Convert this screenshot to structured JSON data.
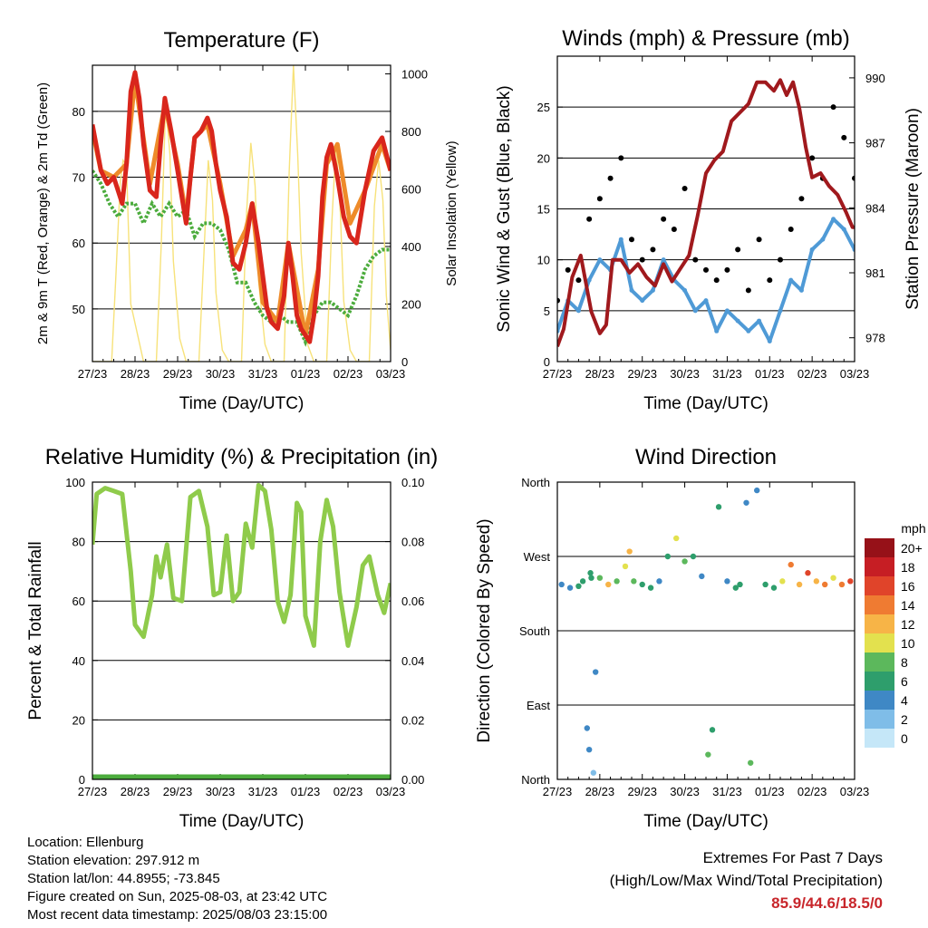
{
  "colors": {
    "temp_2m": "#d9261c",
    "temp_9m": "#ee8b2a",
    "dewpoint": "#4cac3d",
    "solar": "#f7e27a",
    "sonic_wind": "#4f9ad6",
    "gust": "#000000",
    "pressure": "#a0191d",
    "rh": "#8fcb4b",
    "precip": "#4cac3d",
    "extremes": "#c8262b"
  },
  "time_ticks": [
    "27/23",
    "28/23",
    "29/23",
    "30/23",
    "31/23",
    "01/23",
    "02/23",
    "03/23"
  ],
  "footer": {
    "location": "Location: Ellenburg",
    "elevation": "Station elevation: 297.912 m",
    "latlon": "Station lat/lon: 44.8955; -73.845",
    "created": "Figure created on Sun, 2025-08-03, at 23:42 UTC",
    "recent": "Most recent data timestamp: 2025/08/03 23:15:00",
    "extremes_title": "Extremes For Past 7 Days",
    "extremes_sub": "(High/Low/Max Wind/Total Precipitation)",
    "extremes_value": "85.9/44.6/18.5/0"
  },
  "chart_data": [
    {
      "type": "line",
      "title": "Temperature (F)",
      "xlabel": "Time (Day/UTC)",
      "ylabel": "2m & 9m T (Red, Orange) & 2m Td (Green)",
      "y2label": "Solar Insolation (Yellow)",
      "x_ticks": [
        "27/23",
        "28/23",
        "29/23",
        "30/23",
        "31/23",
        "01/23",
        "02/23",
        "03/23"
      ],
      "ylim": [
        42,
        87
      ],
      "yticks": [
        50,
        60,
        70,
        80
      ],
      "y2lim": [
        0,
        1030
      ],
      "y2ticks": [
        0,
        200,
        400,
        600,
        800,
        1000
      ],
      "grid": true,
      "series": [
        {
          "name": "2m T",
          "axis": "left",
          "x": [
            0,
            0.2,
            0.35,
            0.5,
            0.6,
            0.7,
            0.8,
            0.9,
            1.0,
            1.1,
            1.2,
            1.35,
            1.5,
            1.6,
            1.7,
            1.85,
            2.0,
            2.1,
            2.2,
            2.3,
            2.4,
            2.55,
            2.7,
            2.8,
            2.9,
            3.0,
            3.15,
            3.3,
            3.45,
            3.6,
            3.75,
            3.9,
            4.0,
            4.1,
            4.2,
            4.35,
            4.5,
            4.6,
            4.7,
            4.8,
            4.9,
            5.0,
            5.1,
            5.2,
            5.3,
            5.4,
            5.5,
            5.6,
            5.75,
            5.9,
            6.05,
            6.2,
            6.4,
            6.6,
            6.8,
            7.0
          ],
          "y": [
            78,
            71,
            69,
            70,
            68,
            66,
            72,
            83,
            85.9,
            82,
            75,
            68,
            67,
            75,
            82,
            77,
            71,
            67,
            63,
            70,
            76,
            77,
            79,
            77,
            72,
            68,
            64,
            57,
            56,
            60,
            66,
            60,
            55,
            50,
            48,
            47,
            52,
            60,
            55,
            49,
            47,
            46,
            45,
            49,
            55,
            67,
            73,
            75,
            70,
            64,
            61,
            60,
            68,
            74,
            76,
            71
          ]
        },
        {
          "name": "9m T",
          "axis": "left",
          "x": [
            0,
            0.2,
            0.5,
            0.8,
            1.0,
            1.35,
            1.7,
            2.0,
            2.2,
            2.4,
            2.7,
            3.0,
            3.3,
            3.6,
            3.75,
            4.0,
            4.35,
            4.6,
            5.0,
            5.3,
            5.5,
            5.75,
            6.05,
            6.4,
            6.8,
            7.0
          ],
          "y": [
            77,
            71,
            70,
            72,
            85,
            69,
            81,
            72,
            64,
            76,
            78,
            69,
            58,
            62,
            66,
            51,
            48,
            60,
            46,
            56,
            72,
            75,
            63,
            68,
            75,
            71
          ]
        },
        {
          "name": "2m Td",
          "axis": "left",
          "x": [
            0,
            0.2,
            0.4,
            0.6,
            0.8,
            1.0,
            1.2,
            1.4,
            1.6,
            1.8,
            2.0,
            2.2,
            2.4,
            2.6,
            2.8,
            3.0,
            3.2,
            3.4,
            3.6,
            3.8,
            4.0,
            4.2,
            4.4,
            4.6,
            4.8,
            5.0,
            5.2,
            5.4,
            5.6,
            5.8,
            6.0,
            6.2,
            6.4,
            6.6,
            6.8,
            7.0
          ],
          "y": [
            71,
            69,
            66,
            64,
            66,
            66,
            63,
            66,
            64,
            66,
            64,
            65,
            61,
            63,
            63,
            62,
            59,
            54,
            54,
            51,
            49,
            48,
            49,
            48,
            48,
            45,
            49,
            51,
            51,
            50,
            49,
            52,
            56,
            58,
            59,
            59
          ]
        },
        {
          "name": "Solar Insolation",
          "axis": "right",
          "x": [
            0,
            0.45,
            0.55,
            0.65,
            0.72,
            0.8,
            0.9,
            1.2,
            1.5,
            1.62,
            1.72,
            1.82,
            1.9,
            2.05,
            2.2,
            2.5,
            2.62,
            2.72,
            2.82,
            2.9,
            3.05,
            3.2,
            3.5,
            3.62,
            3.72,
            3.82,
            3.9,
            4.05,
            4.2,
            4.5,
            4.62,
            4.72,
            4.82,
            4.9,
            5.05,
            5.2,
            5.5,
            5.62,
            5.72,
            5.82,
            5.9,
            6.05,
            6.2,
            6.5,
            6.62,
            6.72,
            6.82,
            6.9,
            7.0
          ],
          "y": [
            0,
            0,
            300,
            620,
            700,
            680,
            200,
            0,
            0,
            420,
            900,
            720,
            350,
            80,
            0,
            0,
            380,
            700,
            560,
            240,
            40,
            0,
            0,
            520,
            760,
            610,
            280,
            60,
            0,
            0,
            660,
            1030,
            720,
            380,
            60,
            0,
            0,
            480,
            760,
            520,
            210,
            40,
            0,
            0,
            540,
            700,
            560,
            230,
            40
          ]
        }
      ]
    },
    {
      "type": "scatter",
      "title": "Winds (mph) & Pressure (mb)",
      "xlabel": "Time (Day/UTC)",
      "ylabel": "Sonic Wind & Gust (Blue, Black)",
      "y2label": "Station Pressure (Maroon)",
      "x_ticks": [
        "27/23",
        "28/23",
        "29/23",
        "30/23",
        "31/23",
        "01/23",
        "02/23",
        "03/23"
      ],
      "ylim": [
        0,
        30
      ],
      "yticks": [
        0,
        5,
        10,
        15,
        20,
        25
      ],
      "y2lim": [
        976.9,
        991
      ],
      "y2ticks": [
        978,
        981,
        984,
        987,
        990
      ],
      "grid": true,
      "series": [
        {
          "name": "Sonic Wind",
          "axis": "left",
          "x": [
            0,
            0.25,
            0.5,
            0.75,
            1.0,
            1.25,
            1.5,
            1.75,
            2.0,
            2.25,
            2.5,
            2.75,
            3.0,
            3.25,
            3.5,
            3.75,
            4.0,
            4.25,
            4.5,
            4.75,
            5.0,
            5.25,
            5.5,
            5.75,
            6.0,
            6.25,
            6.5,
            6.75,
            7.0
          ],
          "y": [
            3,
            6,
            5,
            8,
            10,
            9,
            12,
            7,
            6,
            7,
            10,
            8,
            7,
            5,
            6,
            3,
            5,
            4,
            3,
            4,
            2,
            5,
            8,
            7,
            11,
            12,
            14,
            13,
            11
          ]
        },
        {
          "name": "Gust",
          "axis": "left",
          "x": [
            0,
            0.25,
            0.5,
            0.75,
            1.0,
            1.25,
            1.5,
            1.75,
            2.0,
            2.25,
            2.5,
            2.75,
            3.0,
            3.25,
            3.5,
            3.75,
            4.0,
            4.25,
            4.5,
            4.75,
            5.0,
            5.25,
            5.5,
            5.75,
            6.0,
            6.25,
            6.5,
            6.75,
            7.0
          ],
          "y": [
            6,
            9,
            8,
            14,
            16,
            18,
            20,
            12,
            10,
            11,
            14,
            13,
            17,
            10,
            9,
            8,
            9,
            11,
            7,
            12,
            8,
            10,
            13,
            16,
            20,
            18,
            25,
            22,
            18
          ]
        },
        {
          "name": "Station Pressure",
          "axis": "right",
          "x": [
            0,
            0.15,
            0.35,
            0.55,
            0.8,
            1.0,
            1.15,
            1.3,
            1.5,
            1.7,
            1.9,
            2.1,
            2.3,
            2.5,
            2.7,
            2.9,
            3.1,
            3.3,
            3.5,
            3.7,
            3.9,
            4.1,
            4.3,
            4.5,
            4.7,
            4.9,
            5.0,
            5.1,
            5.25,
            5.4,
            5.55,
            5.7,
            5.85,
            6.0,
            6.2,
            6.4,
            6.6,
            6.8,
            6.95,
            7.0
          ],
          "y": [
            977.6,
            978.4,
            980.8,
            981.8,
            979.2,
            978.2,
            978.6,
            981.6,
            981.6,
            981.0,
            981.4,
            980.8,
            980.4,
            981.4,
            980.6,
            981.2,
            981.8,
            983.6,
            985.6,
            986.2,
            986.6,
            988.0,
            988.4,
            988.8,
            989.8,
            989.8,
            989.6,
            989.4,
            989.9,
            989.2,
            989.8,
            988.6,
            986.8,
            985.4,
            985.6,
            985.0,
            984.6,
            983.8,
            983.1,
            983.1
          ]
        }
      ]
    },
    {
      "type": "line",
      "title": "Relative Humidity (%) & Precipitation (in)",
      "xlabel": "Time (Day/UTC)",
      "ylabel": "Percent & Total Rainfall",
      "x_ticks": [
        "27/23",
        "28/23",
        "29/23",
        "30/23",
        "31/23",
        "01/23",
        "02/23",
        "03/23"
      ],
      "ylim": [
        0,
        100
      ],
      "yticks": [
        0,
        20,
        40,
        60,
        80,
        100
      ],
      "y2lim": [
        0,
        0.1
      ],
      "y2ticks": [
        "0.00",
        "0.02",
        "0.04",
        "0.06",
        "0.08",
        "0.10"
      ],
      "grid": true,
      "series": [
        {
          "name": "RH",
          "axis": "left",
          "x": [
            0,
            0.1,
            0.3,
            0.5,
            0.7,
            0.9,
            1.0,
            1.2,
            1.4,
            1.5,
            1.6,
            1.75,
            1.9,
            2.1,
            2.3,
            2.5,
            2.7,
            2.85,
            3.0,
            3.15,
            3.3,
            3.45,
            3.6,
            3.75,
            3.9,
            4.05,
            4.2,
            4.35,
            4.5,
            4.65,
            4.8,
            4.9,
            5.0,
            5.2,
            5.35,
            5.5,
            5.65,
            5.8,
            6.0,
            6.2,
            6.35,
            6.5,
            6.7,
            6.85,
            7.0
          ],
          "y": [
            79,
            96,
            98,
            97,
            96,
            70,
            52,
            48,
            62,
            75,
            68,
            79,
            61,
            60,
            95,
            97,
            85,
            62,
            63,
            82,
            60,
            63,
            86,
            78,
            99,
            97,
            84,
            60,
            53,
            62,
            93,
            90,
            55,
            45,
            80,
            94,
            85,
            63,
            45,
            58,
            72,
            75,
            62,
            56,
            66
          ]
        },
        {
          "name": "Total Precipitation",
          "axis": "right",
          "x": [
            0,
            7.0
          ],
          "y": [
            0,
            0
          ]
        }
      ]
    },
    {
      "type": "scatter",
      "title": "Wind Direction",
      "xlabel": "Time (Day/UTC)",
      "ylabel": "Direction (Colored By Speed)",
      "x_ticks": [
        "27/23",
        "28/23",
        "29/23",
        "30/23",
        "31/23",
        "01/23",
        "02/23",
        "03/23"
      ],
      "y_ticks": [
        "North",
        "East",
        "South",
        "West",
        "North"
      ],
      "y_tick_values": [
        0,
        90,
        180,
        270,
        360
      ],
      "ylim": [
        0,
        360
      ],
      "grid": true,
      "legend": {
        "title": "mph",
        "labels": [
          "0",
          "2",
          "4",
          "6",
          "8",
          "10",
          "12",
          "14",
          "16",
          "18",
          "20+"
        ],
        "colors": [
          "#c5e7f8",
          "#7fbde8",
          "#3f88c5",
          "#2e9e6c",
          "#5cb85c",
          "#e3e14e",
          "#f7b447",
          "#ef7b32",
          "#e0442a",
          "#c61e24",
          "#961118"
        ],
        "placement": "right"
      },
      "series": [
        {
          "name": "direction",
          "x": [
            0.1,
            0.3,
            0.5,
            0.6,
            0.7,
            0.75,
            0.78,
            0.8,
            0.85,
            0.9,
            1.0,
            1.2,
            1.4,
            1.6,
            1.7,
            1.8,
            2.0,
            2.2,
            2.4,
            2.6,
            2.8,
            3.0,
            3.2,
            3.4,
            3.55,
            3.65,
            3.8,
            4.0,
            4.2,
            4.3,
            4.45,
            4.55,
            4.7,
            4.9,
            5.1,
            5.3,
            5.5,
            5.7,
            5.9,
            6.1,
            6.3,
            6.5,
            6.7,
            6.9
          ],
          "y": [
            236,
            232,
            234,
            240,
            62,
            36,
            250,
            244,
            8,
            130,
            244,
            236,
            240,
            258,
            276,
            240,
            236,
            232,
            240,
            270,
            292,
            264,
            270,
            246,
            30,
            60,
            330,
            240,
            232,
            236,
            335,
            20,
            350,
            236,
            232,
            240,
            260,
            236,
            250,
            240,
            236,
            244,
            236,
            240
          ],
          "speed": [
            4,
            3,
            5,
            6,
            4,
            3,
            6,
            5,
            2,
            3,
            8,
            12,
            7,
            9,
            11,
            8,
            5,
            6,
            4,
            6,
            10,
            7,
            5,
            3,
            8,
            6,
            5,
            4,
            5,
            6,
            4,
            7,
            3,
            5,
            6,
            9,
            13,
            12,
            15,
            11,
            14,
            9,
            13,
            15
          ]
        }
      ]
    }
  ]
}
